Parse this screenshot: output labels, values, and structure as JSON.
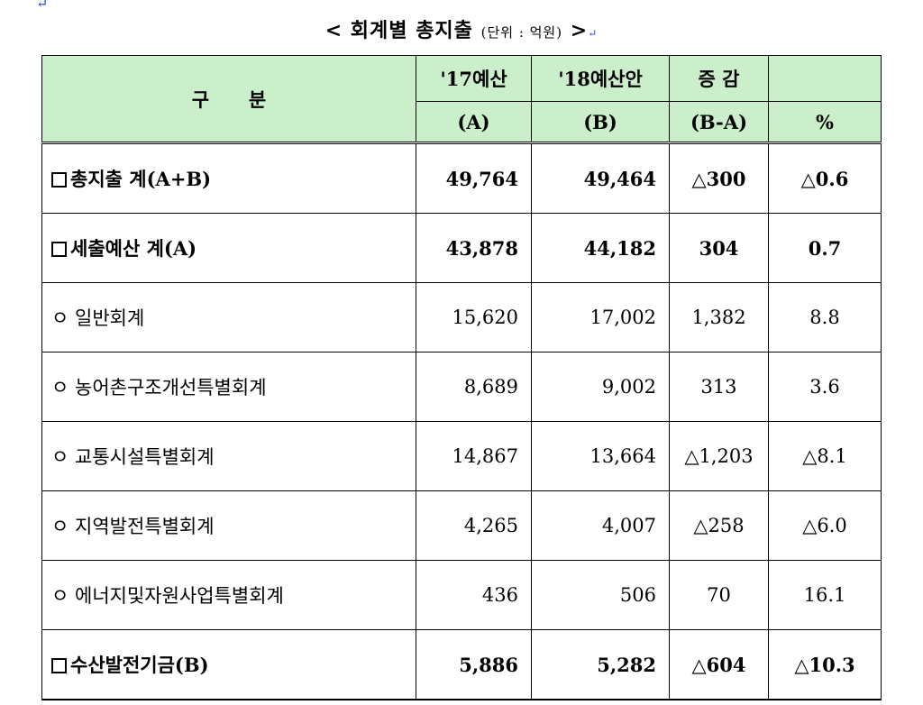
{
  "title": {
    "main": "< 회계별 총지출",
    "unit": "(단위 : 억원)",
    "end": ">"
  },
  "header": {
    "category": "구      분",
    "col_a_line1": "'17예산",
    "col_a_line2": "(A)",
    "col_b_line1": "'18예산안",
    "col_b_line2": "(B)",
    "col_diff_line1": "증 감",
    "col_diff_line2": "(B-A)",
    "col_pct": "%"
  },
  "rows": [
    {
      "label": "총지출 계(A+B)",
      "a": "49,764",
      "b": "49,464",
      "diff": "△300",
      "pct": "△0.6"
    },
    {
      "label": "세출예산 계(A)",
      "a": "43,878",
      "b": "44,182",
      "diff": "304",
      "pct": "0.7"
    },
    {
      "label": "ㅇ 일반회계",
      "a": "15,620",
      "b": "17,002",
      "diff": "1,382",
      "pct": "8.8"
    },
    {
      "label": "ㅇ 농어촌구조개선특별회계",
      "a": "8,689",
      "b": "9,002",
      "diff": "313",
      "pct": "3.6"
    },
    {
      "label": "ㅇ 교통시설특별회계",
      "a": "14,867",
      "b": "13,664",
      "diff": "△1,203",
      "pct": "△8.1"
    },
    {
      "label": "ㅇ 지역발전특별회계",
      "a": "4,265",
      "b": "4,007",
      "diff": "△258",
      "pct": "△6.0"
    },
    {
      "label": "ㅇ 에너지및자원사업특별회계",
      "a": "436",
      "b": "506",
      "diff": "70",
      "pct": "16.1"
    },
    {
      "label": "수산발전기금(B)",
      "a": "5,886",
      "b": "5,282",
      "diff": "△604",
      "pct": "△10.3"
    }
  ]
}
